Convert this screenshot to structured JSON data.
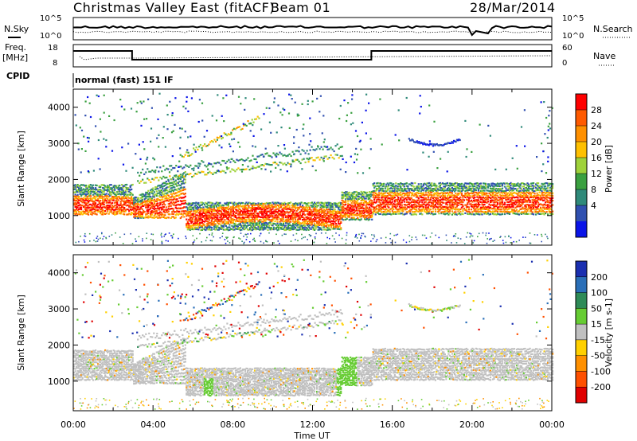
{
  "header": {
    "title": "Christmas Valley East (fitACF)",
    "beam": "Beam 01",
    "date": "28/Mar/2014"
  },
  "noise_panel": {
    "left_label": "N.Sky",
    "left_ticks": [
      "10^5",
      "10^0"
    ],
    "right_label": "N.Search",
    "right_ticks": [
      "10^5",
      "10^0"
    ]
  },
  "freq_panel": {
    "left_label_1": "Freq.",
    "left_label_2": "[MHz]",
    "left_ticks": [
      "18",
      "8"
    ],
    "right_label": "Nave",
    "right_ticks": [
      "60",
      "0"
    ]
  },
  "cpid": {
    "label": "CPID",
    "value": "normal (fast) 151 IF"
  },
  "x_axis": {
    "label": "Time UT",
    "ticks": [
      "00:00",
      "04:00",
      "08:00",
      "12:00",
      "16:00",
      "20:00",
      "00:00"
    ]
  },
  "chart_data": [
    {
      "type": "heatmap",
      "name": "power",
      "ylabel": "Slant Range [km]",
      "y_ticks": [
        1000,
        2000,
        3000,
        4000
      ],
      "xlim_hours": [
        0,
        24
      ],
      "ylim_km": [
        180,
        4500
      ],
      "colorbar_label": "Power [dB]",
      "colorbar_ticks": [
        "28",
        "24",
        "20",
        "16",
        "12",
        "8",
        "4"
      ],
      "colorbar_colors": [
        "#ff0000",
        "#ff5a00",
        "#ff9000",
        "#ffc000",
        "#9fd23a",
        "#3aa040",
        "#2f8a7a",
        "#3050b0",
        "#0a14e8"
      ]
    },
    {
      "type": "heatmap",
      "name": "velocity",
      "ylabel": "Slant Range [km]",
      "y_ticks": [
        1000,
        2000,
        3000,
        4000
      ],
      "xlim_hours": [
        0,
        24
      ],
      "ylim_km": [
        180,
        4500
      ],
      "colorbar_label": "Velocity [m s-1]",
      "colorbar_ticks": [
        "200",
        "100",
        "50",
        "15",
        "-15",
        "-50",
        "-100",
        "-200"
      ],
      "colorbar_colors": [
        "#1a2fb0",
        "#2a6fb8",
        "#2e8b57",
        "#66cc33",
        "#c0c0c0",
        "#ffd000",
        "#ff9000",
        "#ff5000",
        "#e00000"
      ]
    }
  ]
}
